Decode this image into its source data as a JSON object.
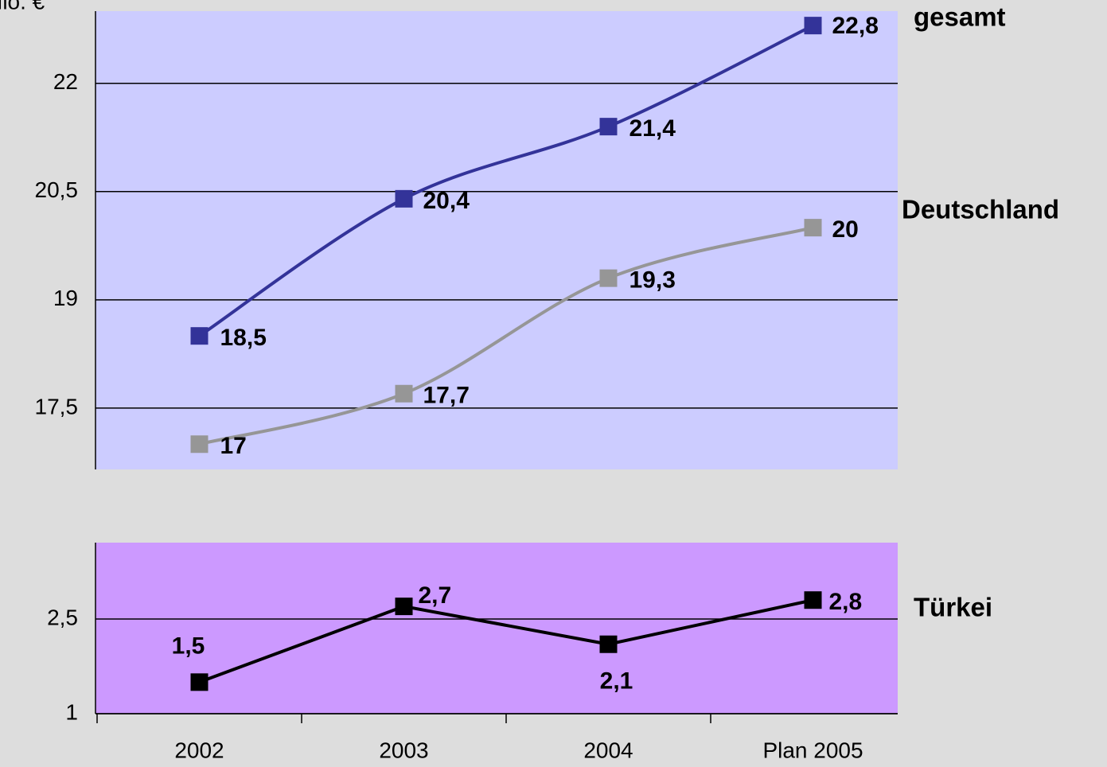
{
  "chart_data": [
    {
      "type": "line",
      "unit_label": "Mio. €",
      "smooth": true,
      "grid": true,
      "plot_color": "#ccccff",
      "ylim": [
        16.65,
        23
      ],
      "yticks": [
        {
          "value": 17.5,
          "label": "17,5"
        },
        19,
        {
          "value": 20.5,
          "label": "20,5"
        },
        22
      ],
      "series": [
        {
          "name": "gesamt",
          "color": "#333399",
          "values": [
            18.5,
            20.4,
            21.4,
            22.8
          ],
          "value_labels": [
            "18,5",
            "20,4",
            "21,4",
            "22,8"
          ]
        },
        {
          "name": "Deutschland",
          "color": "#969696",
          "values": [
            17,
            17.7,
            19.3,
            20
          ],
          "value_labels": [
            "17",
            "17,7",
            "19,3",
            "20"
          ]
        }
      ]
    },
    {
      "type": "line",
      "smooth": false,
      "grid": true,
      "plot_color": "#cc99ff",
      "categories": [
        "2002",
        "2003",
        "2004",
        "Plan 2005"
      ],
      "ylim": [
        1,
        3.71
      ],
      "yticks": [
        1,
        {
          "value": 2.5,
          "label": "2,5"
        }
      ],
      "series": [
        {
          "name": "Türkei",
          "color": "#000000",
          "values": [
            1.5,
            2.7,
            2.1,
            2.8
          ],
          "value_labels": [
            "1,5",
            "2,7",
            "2,1",
            "2,8"
          ]
        }
      ]
    }
  ]
}
